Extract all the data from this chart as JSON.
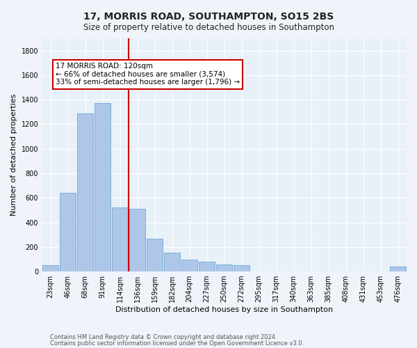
{
  "title": "17, MORRIS ROAD, SOUTHAMPTON, SO15 2BS",
  "subtitle": "Size of property relative to detached houses in Southampton",
  "xlabel": "Distribution of detached houses by size in Southampton",
  "ylabel": "Number of detached properties",
  "categories": [
    "23sqm",
    "46sqm",
    "68sqm",
    "91sqm",
    "114sqm",
    "136sqm",
    "159sqm",
    "182sqm",
    "204sqm",
    "227sqm",
    "250sqm",
    "272sqm",
    "295sqm",
    "317sqm",
    "340sqm",
    "363sqm",
    "385sqm",
    "408sqm",
    "431sqm",
    "453sqm",
    "476sqm"
  ],
  "values": [
    50,
    640,
    1290,
    1370,
    520,
    510,
    265,
    155,
    95,
    80,
    60,
    50,
    0,
    0,
    0,
    0,
    0,
    0,
    0,
    0,
    40
  ],
  "bar_color": "#aec6e8",
  "bar_edge_color": "#5a9fd4",
  "vline_x": 4.5,
  "vline_color": "#cc0000",
  "annotation_text": "17 MORRIS ROAD: 120sqm\n← 66% of detached houses are smaller (3,574)\n33% of semi-detached houses are larger (1,796) →",
  "annotation_box_color": "#ffffff",
  "annotation_box_edge_color": "#cc0000",
  "ylim": [
    0,
    1900
  ],
  "yticks": [
    0,
    200,
    400,
    600,
    800,
    1000,
    1200,
    1400,
    1600,
    1800
  ],
  "footer1": "Contains HM Land Registry data © Crown copyright and database right 2024.",
  "footer2": "Contains public sector information licensed under the Open Government Licence v3.0.",
  "fig_bg_color": "#f0f4fa",
  "plot_bg_color": "#e8f0f8",
  "title_fontsize": 10,
  "subtitle_fontsize": 8.5,
  "axis_label_fontsize": 8,
  "tick_fontsize": 7,
  "footer_fontsize": 6,
  "annot_fontsize": 7.5
}
